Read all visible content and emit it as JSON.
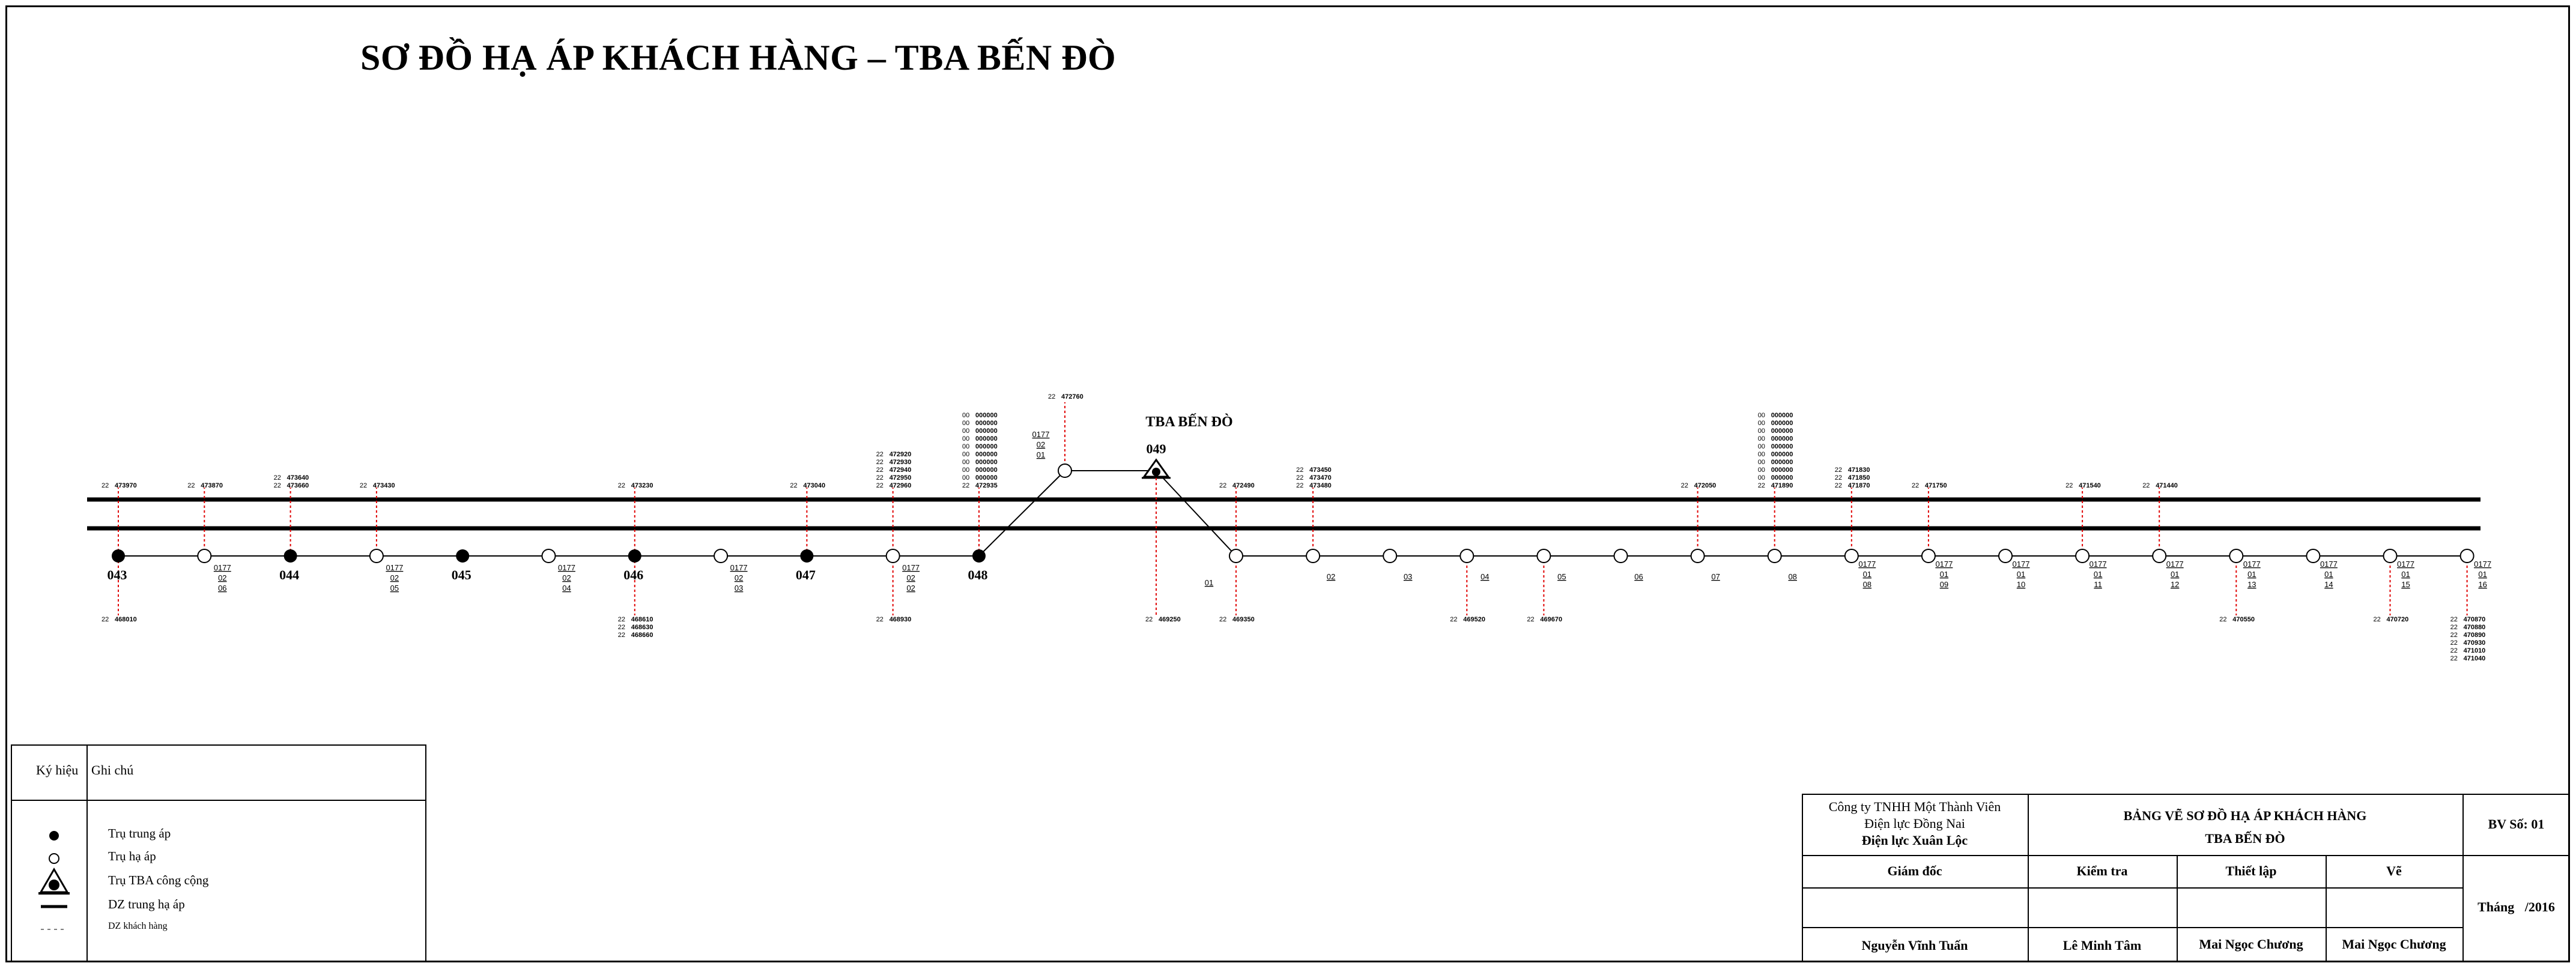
{
  "title": "SƠ ĐỒ HẠ ÁP KHÁCH HÀNG – TBA BẾN ĐÒ",
  "station": {
    "label": "TBA BẾN ĐÒ",
    "number": "049"
  },
  "colors": {
    "mv_line": "#000000",
    "customer_line": "#e00000",
    "pole_mv": "#000000",
    "pole_lv": "#ffffff"
  },
  "left_poles": [
    {
      "label": "043",
      "type": "mv",
      "up": [
        "22 473970"
      ],
      "down": [
        "22 468010"
      ]
    },
    {
      "label": "0177/02/06",
      "type": "lv",
      "up": [
        "22 473870"
      ],
      "down": []
    },
    {
      "label": "044",
      "type": "mv",
      "up": [
        "22 473640",
        "22 473660"
      ],
      "down": []
    },
    {
      "label": "0177/02/05",
      "type": "lv",
      "up": [
        "22 473430"
      ],
      "down": []
    },
    {
      "label": "045",
      "type": "mv",
      "up": [],
      "down": []
    },
    {
      "label": "0177/02/04",
      "type": "lv",
      "up": [],
      "down": []
    },
    {
      "label": "046",
      "type": "mv",
      "up": [
        "22 473230"
      ],
      "down": [
        "22 468610",
        "22 468630",
        "22 468660"
      ]
    },
    {
      "label": "0177/02/03",
      "type": "lv",
      "up": [],
      "down": []
    },
    {
      "label": "047",
      "type": "mv",
      "up": [
        "22 473040"
      ],
      "down": []
    },
    {
      "label": "0177/02/02",
      "type": "lv",
      "up": [
        "22 472920",
        "22 472930",
        "22 472940",
        "22 472950",
        "22 472960"
      ],
      "down": [
        "22 468930"
      ]
    },
    {
      "label": "048",
      "type": "mv",
      "up": [
        "00 000000",
        "00 000000",
        "00 000000",
        "00 000000",
        "00 000000",
        "00 000000",
        "00 000000",
        "00 000000",
        "00 000000",
        "22 472935"
      ],
      "down": []
    }
  ],
  "top_pole": {
    "label": "0177/02/01",
    "up": [
      "22 472760"
    ]
  },
  "station_down": [
    "22 469250"
  ],
  "right_poles": [
    {
      "label": "01",
      "up": [
        "22 472490"
      ],
      "down": [
        "22 469350"
      ]
    },
    {
      "label": "02",
      "up": [
        "22 473450",
        "22 473470",
        "22 473480"
      ],
      "down": []
    },
    {
      "label": "03",
      "up": [],
      "down": []
    },
    {
      "label": "04",
      "up": [],
      "down": [
        "22 469520"
      ]
    },
    {
      "label": "05",
      "up": [],
      "down": [
        "22 469670"
      ]
    },
    {
      "label": "06",
      "up": [],
      "down": []
    },
    {
      "label": "07",
      "up": [
        "22 472050"
      ],
      "down": []
    },
    {
      "label": "08",
      "up": [
        "00 000000",
        "00 000000",
        "00 000000",
        "00 000000",
        "00 000000",
        "00 000000",
        "00 000000",
        "00 000000",
        "00 000000",
        "22 471890"
      ],
      "down": []
    },
    {
      "label": "0177/01/08",
      "up": [
        "22 471830",
        "22 471850",
        "22 471870"
      ],
      "down": []
    },
    {
      "label": "0177/01/09",
      "up": [
        "22 471750"
      ],
      "down": []
    },
    {
      "label": "0177/01/10",
      "up": [],
      "down": []
    },
    {
      "label": "0177/01/11",
      "up": [
        "22 471540"
      ],
      "down": []
    },
    {
      "label": "0177/01/12",
      "up": [
        "22 471440"
      ],
      "down": []
    },
    {
      "label": "0177/01/13",
      "up": [],
      "down": [
        "22 470550"
      ]
    },
    {
      "label": "0177/01/14",
      "up": [],
      "down": []
    },
    {
      "label": "0177/01/15",
      "up": [],
      "down": [
        "22 470720"
      ]
    },
    {
      "label": "0177/01/16",
      "up": [],
      "down": [
        "22 470870",
        "22 470880",
        "22 470890",
        "22 470930",
        "22 471010",
        "22 471040"
      ]
    }
  ],
  "legend": {
    "col1": "Ký hiệu",
    "col2": "Ghi chú",
    "items": [
      {
        "symbol": "filled-circle",
        "label": "Trụ trung áp"
      },
      {
        "symbol": "open-circle",
        "label": "Trụ hạ áp"
      },
      {
        "symbol": "station",
        "label": "Trụ TBA công cộng"
      },
      {
        "symbol": "thick-line",
        "label": "DZ trung hạ áp"
      },
      {
        "symbol": "dashed-line",
        "label": "DZ khách hàng"
      }
    ]
  },
  "title_block": {
    "company": [
      "Công ty TNHH Một Thành Viên",
      "Điện lực Đồng Nai",
      "Điện lực Xuân Lộc"
    ],
    "drawing_title": [
      "BẢNG VẼ SƠ ĐỒ HẠ ÁP KHÁCH HÀNG",
      "TBA BẾN ĐÒ"
    ],
    "sheet_no": "BV Số: 01",
    "roles": [
      "Giám đốc",
      "Kiểm tra",
      "Thiết lập",
      "Vẽ"
    ],
    "names": [
      "Nguyễn Vĩnh Tuấn",
      "Lê Minh Tâm",
      "Mai Ngọc Chương",
      "Mai Ngọc Chương"
    ],
    "date_label": "Tháng",
    "date_value": "/2016"
  }
}
